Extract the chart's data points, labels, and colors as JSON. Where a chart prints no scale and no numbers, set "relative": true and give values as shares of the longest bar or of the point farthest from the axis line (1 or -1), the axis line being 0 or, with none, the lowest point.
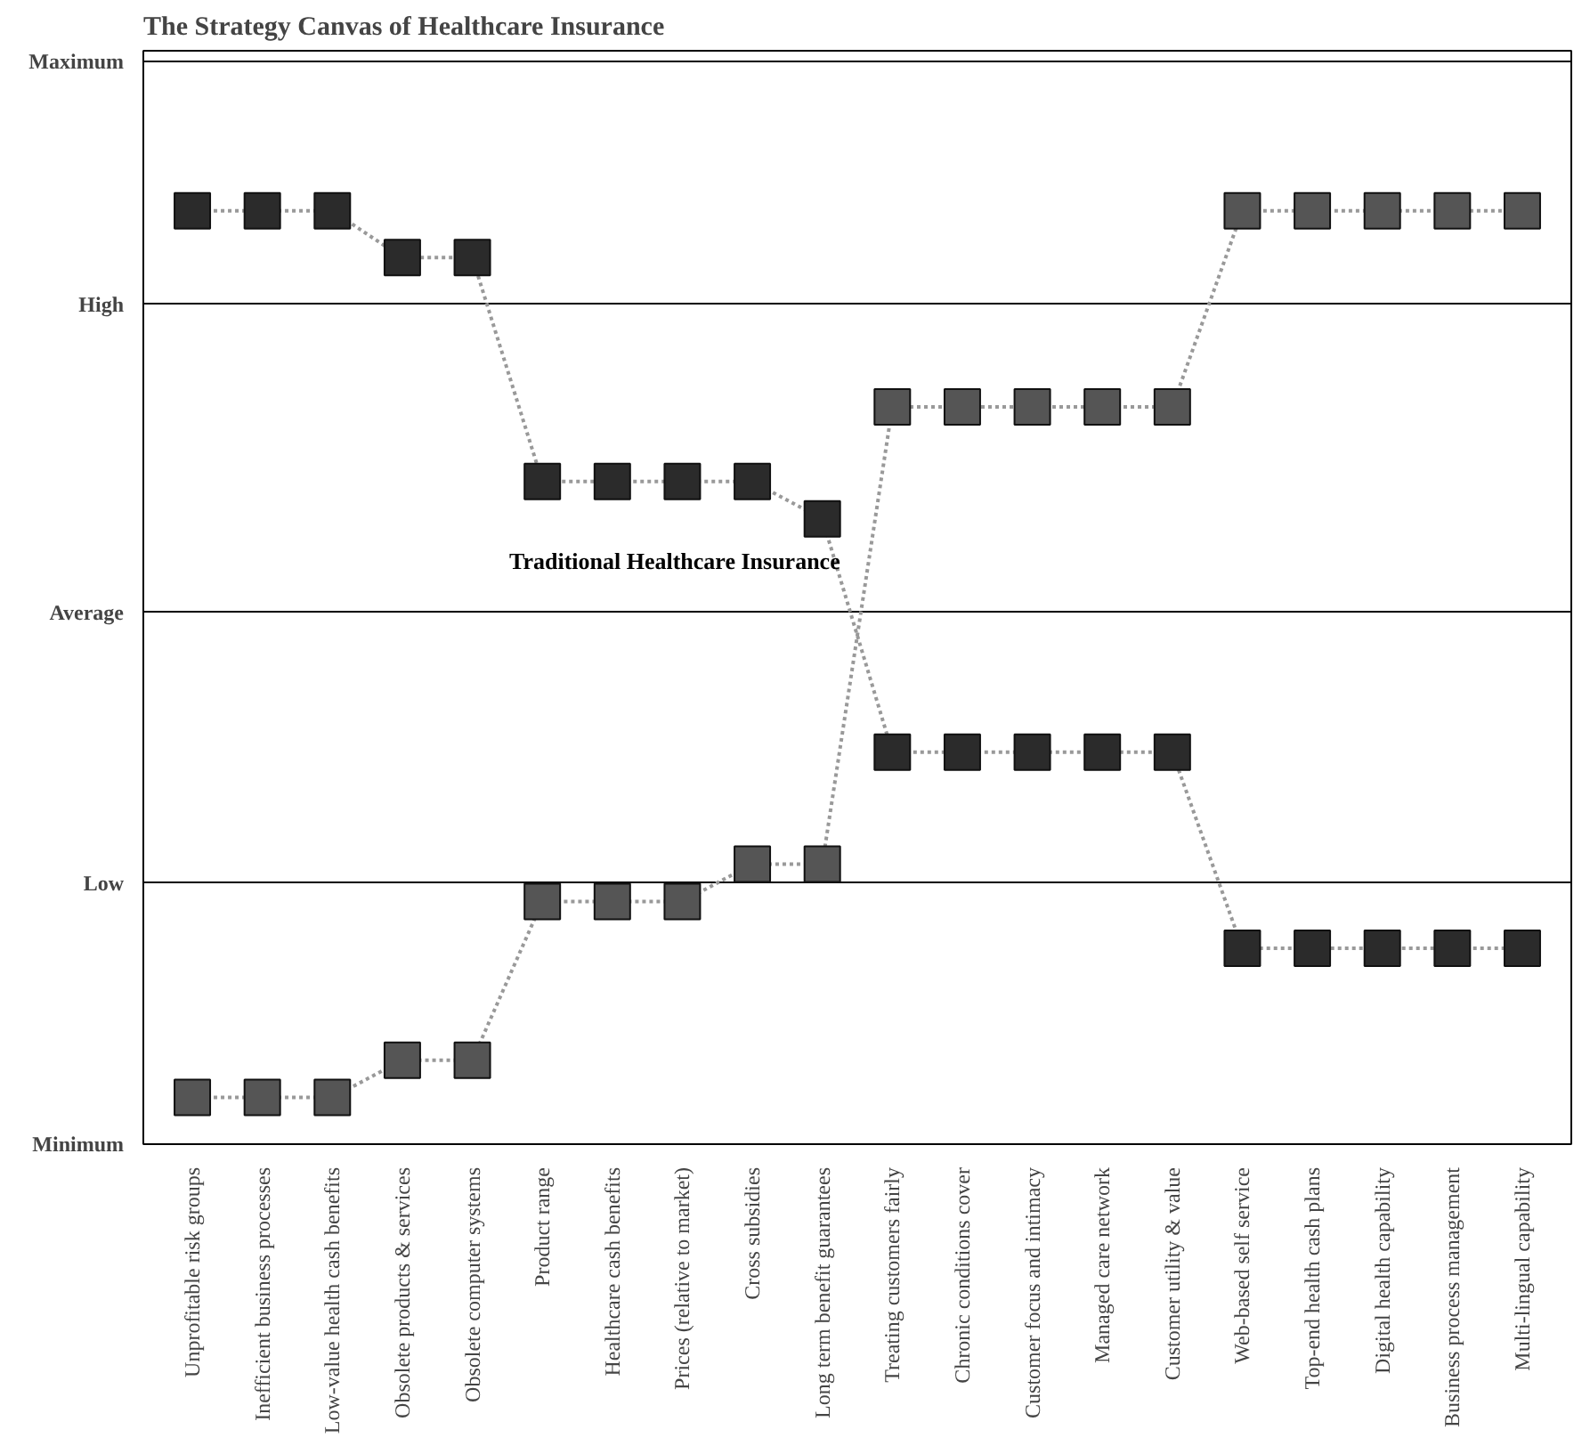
{
  "chart_data": {
    "type": "line",
    "title": "The Strategy Canvas of Healthcare Insurance",
    "categories": [
      "Unprofitable risk groups",
      "Inefficient business processes",
      "Low-value health cash benefits",
      "Obsolete products & services",
      "Obsolete computer systems",
      "Product range",
      "Healthcare cash benefits",
      "Prices (relative to market)",
      "Cross subsidies",
      "Long term benefit guarantees",
      "Treating customers fairly",
      "Chronic conditions cover",
      "Customer focus and intimacy",
      "Managed care network",
      "Customer utility & value",
      "Web-based self service",
      "Top-end health cash plans",
      "Digital health capability",
      "Business process management",
      "Multi-lingual capability"
    ],
    "relative": true,
    "series": [
      {
        "name": "Traditional Healthcare Insurance",
        "color": "#2b2b2b",
        "values": [
          1,
          1,
          1,
          0.95,
          0.95,
          0.71,
          0.71,
          0.71,
          0.71,
          0.67,
          0.42,
          0.42,
          0.42,
          0.42,
          0.42,
          0.21,
          0.21,
          0.21,
          0.21,
          0.21
        ]
      },
      {
        "color": "#555555",
        "values": [
          0.05,
          0.05,
          0.05,
          0.09,
          0.09,
          0.26,
          0.26,
          0.26,
          0.3,
          0.3,
          0.79,
          0.79,
          0.79,
          0.79,
          0.79,
          1,
          1,
          1,
          1,
          1
        ]
      }
    ],
    "ref_lines": [
      {
        "axis": "y",
        "value": 0,
        "label": "Minimum"
      },
      {
        "axis": "y",
        "value": 0.28,
        "label": "Low"
      },
      {
        "axis": "y",
        "value": 0.57,
        "label": "Average"
      },
      {
        "axis": "y",
        "value": 0.9,
        "label": "High"
      },
      {
        "axis": "y",
        "value": 1.16,
        "label": "Maximum"
      }
    ],
    "marker": "square",
    "line_style": "dotted"
  }
}
